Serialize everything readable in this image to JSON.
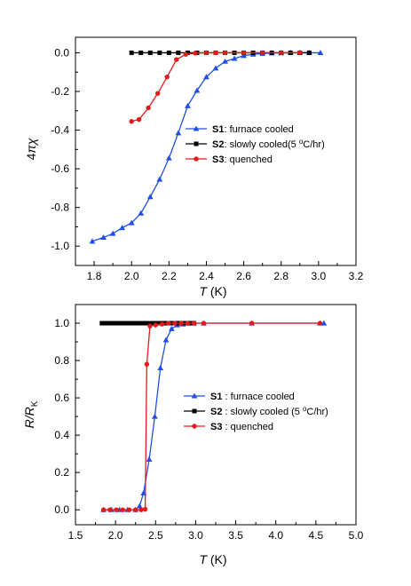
{
  "chart_data": [
    {
      "type": "line",
      "xlabel": "T (K)",
      "ylabel": "4πχ",
      "xlim": [
        1.7,
        3.2
      ],
      "ylim": [
        -1.1,
        0.08
      ],
      "xticks": [
        "1.8",
        "2.0",
        "2.2",
        "2.4",
        "2.6",
        "2.8",
        "3.0",
        "3.2"
      ],
      "yticks": [
        "0.0",
        "-0.2",
        "-0.4",
        "-0.6",
        "-0.8",
        "-1.0"
      ],
      "grid": false,
      "legend_position": "center-right",
      "series": [
        {
          "name": "S1",
          "desc": ": furnace cooled",
          "color": "#1f4fe6",
          "marker": "triangle",
          "x": [
            1.79,
            1.85,
            1.9,
            1.95,
            2.0,
            2.05,
            2.1,
            2.15,
            2.2,
            2.25,
            2.3,
            2.35,
            2.4,
            2.45,
            2.5,
            2.55,
            2.6,
            2.65,
            2.7,
            2.75,
            2.8,
            2.85,
            2.9,
            2.95,
            3.01
          ],
          "y": [
            -0.975,
            -0.955,
            -0.935,
            -0.905,
            -0.88,
            -0.83,
            -0.745,
            -0.655,
            -0.545,
            -0.415,
            -0.275,
            -0.195,
            -0.125,
            -0.08,
            -0.045,
            -0.03,
            -0.015,
            -0.008,
            -0.004,
            -0.002,
            -0.001,
            0.0,
            0.0,
            0.0,
            0.0
          ]
        },
        {
          "name": "S2",
          "desc": ": slowly cooled(5 °C/hr)",
          "color": "#000000",
          "marker": "square",
          "x": [
            2.0,
            2.05,
            2.1,
            2.15,
            2.2,
            2.25,
            2.3,
            2.35,
            2.4,
            2.45,
            2.5,
            2.55,
            2.6,
            2.65,
            2.7,
            2.75,
            2.8,
            2.85,
            2.9,
            2.95
          ],
          "y": [
            0.0,
            0.0,
            0.0,
            0.0,
            0.0,
            0.0,
            0.0,
            0.0,
            0.0,
            0.0,
            0.0,
            0.0,
            0.0,
            0.0,
            0.0,
            0.0,
            0.0,
            0.0,
            0.0,
            0.0
          ]
        },
        {
          "name": "S3",
          "desc": ": quenched",
          "color": "#e41a1a",
          "marker": "circle",
          "x": [
            2.0,
            2.04,
            2.09,
            2.14,
            2.19,
            2.24,
            2.29,
            2.34,
            2.4,
            2.45,
            2.5,
            2.6,
            2.7,
            2.8,
            2.9
          ],
          "y": [
            -0.355,
            -0.345,
            -0.285,
            -0.21,
            -0.125,
            -0.035,
            -0.008,
            -0.002,
            0.0,
            0.0,
            0.0,
            0.0,
            0.0,
            0.0,
            0.0
          ]
        }
      ]
    },
    {
      "type": "line",
      "xlabel": "T (K)",
      "ylabel": "R/R4K",
      "xlim": [
        1.5,
        5.0
      ],
      "ylim": [
        -0.08,
        1.1
      ],
      "xticks": [
        "1.5",
        "2.0",
        "2.5",
        "3.0",
        "3.5",
        "4.0",
        "4.5",
        "5.0"
      ],
      "yticks": [
        "1.0",
        "0.8",
        "0.6",
        "0.4",
        "0.2",
        "0.0"
      ],
      "grid": false,
      "legend_position": "center-right",
      "series": [
        {
          "name": "S1",
          "desc": " : furnace cooled",
          "color": "#1f4fe6",
          "marker": "triangle",
          "x": [
            1.85,
            1.95,
            2.05,
            2.15,
            2.25,
            2.3,
            2.35,
            2.42,
            2.49,
            2.56,
            2.63,
            2.7,
            2.77,
            2.84,
            2.91,
            2.98,
            3.1,
            3.7,
            4.55,
            4.6
          ],
          "y": [
            0.0,
            0.0,
            0.0,
            0.0,
            0.0,
            0.02,
            0.09,
            0.27,
            0.5,
            0.76,
            0.91,
            0.97,
            0.99,
            0.995,
            1.0,
            1.0,
            1.0,
            1.0,
            1.0,
            1.0
          ]
        },
        {
          "name": "S2",
          "desc": " : slowly cooled (5 °C/hr)",
          "color": "#000000",
          "marker": "square",
          "x": [
            1.83,
            1.88,
            1.93,
            1.98,
            2.03,
            2.08,
            2.13,
            2.18,
            2.23,
            2.28,
            2.33,
            2.38,
            2.43,
            2.48,
            2.53,
            2.58,
            2.63,
            2.68,
            2.73,
            2.78,
            2.83,
            2.88,
            2.93,
            2.98
          ],
          "y": [
            1.0,
            1.0,
            1.0,
            1.0,
            1.0,
            1.0,
            1.0,
            1.0,
            1.0,
            1.0,
            1.0,
            1.0,
            1.0,
            1.0,
            1.0,
            1.0,
            1.0,
            1.0,
            1.0,
            1.0,
            1.0,
            1.0,
            1.0,
            1.0
          ]
        },
        {
          "name": "S3",
          "desc": " : quenched",
          "color": "#e41a1a",
          "marker": "circle",
          "x": [
            1.85,
            1.93,
            2.01,
            2.09,
            2.17,
            2.25,
            2.32,
            2.37,
            2.39,
            2.43,
            2.5,
            2.58,
            2.66,
            2.74,
            2.82,
            2.9,
            2.98,
            3.1,
            3.7,
            4.55
          ],
          "y": [
            0.0,
            0.0,
            0.0,
            0.0,
            0.0,
            0.0,
            0.0,
            0.003,
            0.78,
            0.985,
            0.99,
            0.995,
            1.0,
            1.0,
            1.0,
            1.0,
            1.0,
            1.0,
            1.0,
            1.0
          ]
        }
      ]
    }
  ]
}
